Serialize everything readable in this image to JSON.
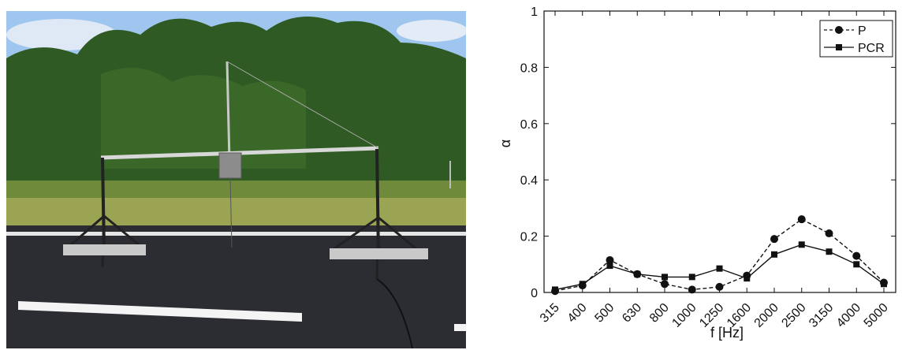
{
  "photo": {
    "description_icon": "measurement-rig-photo",
    "colors": {
      "sky": "#9ec6ee",
      "trees": "#2f5a23",
      "grass": "#9aa453",
      "asphalt": "#2b2d33",
      "marking": "#f4f4f4"
    }
  },
  "chart_data": {
    "type": "line",
    "categories": [
      "315",
      "400",
      "500",
      "630",
      "800",
      "1000",
      "1250",
      "1600",
      "2000",
      "2500",
      "3150",
      "4000",
      "5000"
    ],
    "series": [
      {
        "name": "P",
        "values": [
          0.005,
          0.025,
          0.115,
          0.065,
          0.03,
          0.01,
          0.02,
          0.06,
          0.19,
          0.26,
          0.21,
          0.13,
          0.035
        ],
        "marker": "circle",
        "line": "dashed"
      },
      {
        "name": "PCR",
        "values": [
          0.01,
          0.03,
          0.095,
          0.065,
          0.055,
          0.055,
          0.085,
          0.05,
          0.135,
          0.17,
          0.145,
          0.1,
          0.03
        ],
        "marker": "square",
        "line": "solid"
      }
    ],
    "xlabel": "f [Hz]",
    "ylabel": "α",
    "ylim": [
      0,
      1
    ],
    "yticks": [
      "0",
      "0.2",
      "0.4",
      "0.6",
      "0.8",
      "1"
    ],
    "legend": "top-right",
    "grid": false
  }
}
